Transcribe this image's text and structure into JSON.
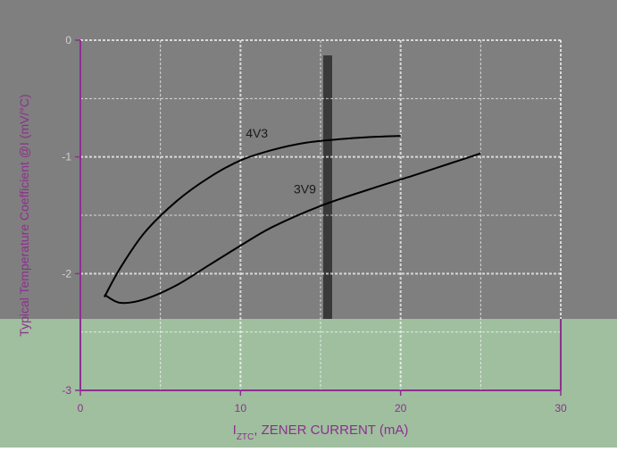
{
  "colors": {
    "background_top": "#7f7f7f",
    "background_bottom": "#9fbf9f",
    "grid": "#ffffff",
    "axis": "#8f2f8f",
    "curve": "#000000",
    "label_text": "#8f2f8f",
    "band": "#000000"
  },
  "chart_data": {
    "type": "line",
    "title": "",
    "xlabel_prefix": "I",
    "xlabel_sub": "ZTC",
    "xlabel_rest": ", ZENER CURRENT (mA)",
    "ylabel": "Typical Temperature Coefficient @I (mV/°C)",
    "xlim": [
      0,
      30
    ],
    "ylim": [
      -3,
      0
    ],
    "x_ticks": [
      0,
      10,
      20,
      30
    ],
    "y_ticks_left": [
      "0",
      "-1",
      "-2",
      "-3"
    ],
    "y_tick_values": [
      0,
      -1,
      -2,
      -3
    ],
    "grid": true,
    "series": [
      {
        "name": "4V3",
        "x": [
          1.5,
          2.5,
          4,
          6,
          8,
          10,
          12,
          14,
          16,
          18,
          20
        ],
        "y": [
          -2.2,
          -1.95,
          -1.65,
          -1.38,
          -1.18,
          -1.03,
          -0.94,
          -0.88,
          -0.85,
          -0.83,
          -0.82
        ]
      },
      {
        "name": "3V9",
        "x": [
          1.5,
          2.5,
          4,
          6,
          8,
          10,
          12,
          15,
          18,
          21,
          23,
          25
        ],
        "y": [
          -2.18,
          -2.25,
          -2.22,
          -2.1,
          -1.93,
          -1.76,
          -1.6,
          -1.42,
          -1.28,
          -1.15,
          -1.06,
          -0.97
        ]
      }
    ]
  }
}
